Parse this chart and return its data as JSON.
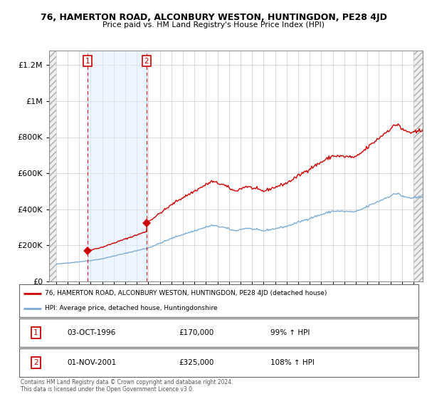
{
  "title": "76, HAMERTON ROAD, ALCONBURY WESTON, HUNTINGDON, PE28 4JD",
  "subtitle": "Price paid vs. HM Land Registry's House Price Index (HPI)",
  "legend_line1": "76, HAMERTON ROAD, ALCONBURY WESTON, HUNTINGDON, PE28 4JD (detached house)",
  "legend_line2": "HPI: Average price, detached house, Huntingdonshire",
  "footnote": "Contains HM Land Registry data © Crown copyright and database right 2024.\nThis data is licensed under the Open Government Licence v3.0.",
  "sale1_label": "1",
  "sale1_date": "03-OCT-1996",
  "sale1_price": 170000,
  "sale1_price_str": "£170,000",
  "sale1_hpi_pct": "99% ↑ HPI",
  "sale2_label": "2",
  "sale2_date": "01-NOV-2001",
  "sale2_price": 325000,
  "sale2_price_str": "£325,000",
  "sale2_hpi_pct": "108% ↑ HPI",
  "red_color": "#cc0000",
  "blue_color": "#7dadd4",
  "blue_fill": "#ddeeff",
  "hatch_color": "#cccccc",
  "background_color": "#ffffff",
  "plot_bg_color": "#ffffff",
  "grid_color": "#cccccc",
  "ylim": [
    0,
    1280000
  ],
  "yticks": [
    0,
    200000,
    400000,
    600000,
    800000,
    1000000,
    1200000
  ],
  "ytick_labels": [
    "£0",
    "£200K",
    "£400K",
    "£600K",
    "£800K",
    "£1M",
    "£1.2M"
  ],
  "sale1_year": 1996.75,
  "sale2_year": 2001.83,
  "xlim_left": 1993.4,
  "xlim_right": 2025.8
}
